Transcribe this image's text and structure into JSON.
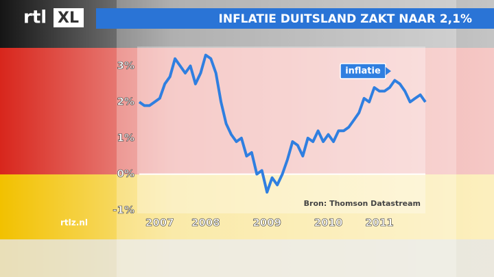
{
  "brand": {
    "logo": "rtl",
    "logo_tag": "XL",
    "site": "rtlz.nl"
  },
  "chart_data": {
    "type": "line",
    "title": "INFLATIE DUITSLAND ZAKT NAAR 2,1%",
    "annotation": "Bron: Thomson Datastream",
    "categories": [
      null,
      null,
      null,
      null,
      "2007",
      null,
      null,
      null,
      null,
      null,
      null,
      null,
      null,
      "2008",
      null,
      null,
      null,
      null,
      null,
      null,
      null,
      null,
      null,
      null,
      null,
      "2009",
      null,
      null,
      null,
      null,
      null,
      null,
      null,
      null,
      null,
      null,
      null,
      "2010",
      null,
      null,
      null,
      null,
      null,
      null,
      null,
      null,
      null,
      "2011",
      null,
      null,
      null,
      null,
      null,
      null,
      null,
      null,
      null
    ],
    "series": [
      {
        "name": "inflatie",
        "color": "#2f7fe0",
        "values": [
          2.0,
          1.9,
          1.9,
          2.0,
          2.1,
          2.5,
          2.7,
          3.2,
          3.0,
          2.8,
          3.0,
          2.5,
          2.8,
          3.3,
          3.2,
          2.8,
          2.0,
          1.4,
          1.1,
          0.9,
          1.0,
          0.5,
          0.6,
          0.0,
          0.1,
          -0.5,
          -0.1,
          -0.3,
          0.0,
          0.4,
          0.9,
          0.8,
          0.5,
          1.0,
          0.9,
          1.2,
          0.9,
          1.1,
          0.9,
          1.2,
          1.2,
          1.3,
          1.5,
          1.7,
          2.1,
          2.0,
          2.4,
          2.3,
          2.3,
          2.4,
          2.6,
          2.5,
          2.3,
          2.0,
          2.1,
          2.2,
          2.0
        ]
      }
    ],
    "ylim": [
      -1.05,
      3.5
    ],
    "yticks": [
      {
        "value": 3,
        "label": "3%"
      },
      {
        "value": 2,
        "label": "2%"
      },
      {
        "value": 1,
        "label": "1%"
      },
      {
        "value": 0,
        "label": "0%"
      },
      {
        "value": -1,
        "label": "-1%"
      }
    ]
  }
}
